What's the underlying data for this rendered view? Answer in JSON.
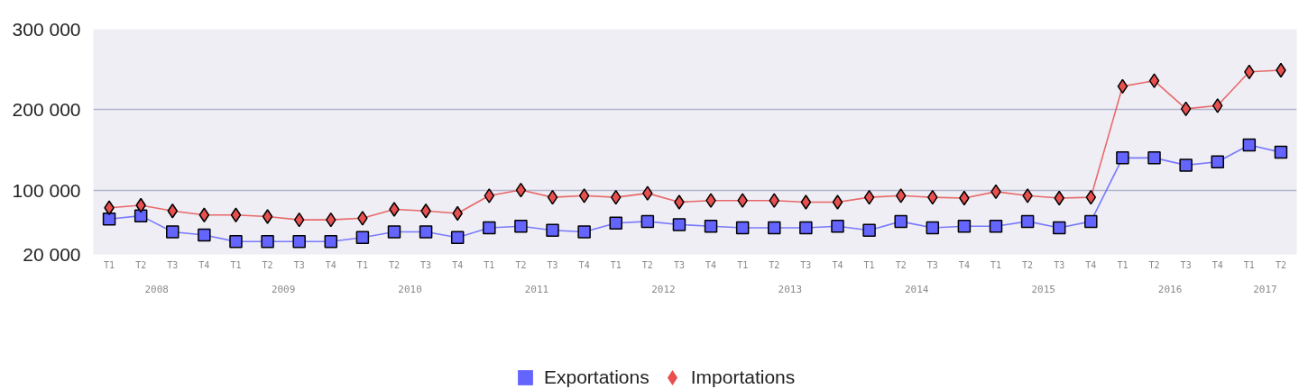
{
  "chart_data": {
    "type": "line",
    "categories": [
      "T1",
      "T2",
      "T3",
      "T4",
      "T1",
      "T2",
      "T3",
      "T4",
      "T1",
      "T2",
      "T3",
      "T4",
      "T1",
      "T2",
      "T3",
      "T4",
      "T1",
      "T2",
      "T3",
      "T4",
      "T1",
      "T2",
      "T3",
      "T4",
      "T1",
      "T2",
      "T3",
      "T4",
      "T1",
      "T2",
      "T3",
      "T4",
      "T1",
      "T2",
      "T3",
      "T4",
      "T1",
      "T2"
    ],
    "series": [
      {
        "name": "Exportations",
        "color": "#6464ff",
        "marker": "square",
        "values": [
          64000,
          68000,
          48000,
          44000,
          36000,
          36000,
          36000,
          36000,
          41000,
          48000,
          48000,
          41000,
          53000,
          55000,
          50000,
          48000,
          59000,
          61000,
          57000,
          55000,
          53000,
          53000,
          53000,
          55000,
          50000,
          61000,
          53000,
          55000,
          55000,
          61000,
          53000,
          61000,
          140000,
          140000,
          131000,
          135000,
          156000,
          147000
        ]
      },
      {
        "name": "Importations",
        "color": "#e85050",
        "marker": "diamond",
        "values": [
          78000,
          81000,
          74000,
          69000,
          69000,
          67000,
          63000,
          63000,
          65000,
          76000,
          74000,
          71000,
          93000,
          100000,
          91000,
          93000,
          91000,
          96000,
          85000,
          87000,
          87000,
          87000,
          85000,
          85000,
          91000,
          93000,
          91000,
          90000,
          98000,
          93000,
          90000,
          91000,
          229000,
          236000,
          201000,
          205000,
          247000,
          249000
        ]
      }
    ],
    "x2lim": [
      2008,
      2017.5
    ],
    "x2ticks": [
      {
        "value": 2008.5,
        "label": "2008"
      },
      {
        "value": 2009.5,
        "label": "2009"
      },
      {
        "value": 2010.5,
        "label": "2010"
      },
      {
        "value": 2011.5,
        "label": "2011"
      },
      {
        "value": 2012.5,
        "label": "2012"
      },
      {
        "value": 2013.5,
        "label": "2013"
      },
      {
        "value": 2014.5,
        "label": "2014"
      },
      {
        "value": 2015.5,
        "label": "2015"
      },
      {
        "value": 2016.5,
        "label": "2016"
      },
      {
        "value": 2017.25,
        "label": "2017"
      }
    ],
    "ylim": [
      20000,
      300000
    ],
    "yticks": [
      {
        "value": 20000,
        "label": "20 000"
      },
      {
        "value": 100000,
        "label": "100 000"
      },
      {
        "value": 200000,
        "label": "200 000"
      },
      {
        "value": 300000,
        "label": "300 000"
      }
    ],
    "grid": "y",
    "legend": "bottom",
    "line_style": "solid"
  }
}
